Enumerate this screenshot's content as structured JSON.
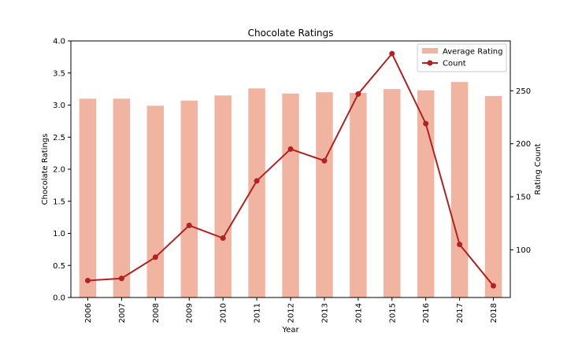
{
  "chart_data": {
    "type": "bar",
    "title": "Chocolate Ratings",
    "xlabel": "Year",
    "ylabel": "Chocolate Ratings",
    "y2label": "Rating Count",
    "categories": [
      "2006",
      "2007",
      "2008",
      "2009",
      "2010",
      "2011",
      "2012",
      "2013",
      "2014",
      "2015",
      "2016",
      "2017",
      "2018"
    ],
    "ylim": [
      0,
      4.0
    ],
    "yticks": [
      0.0,
      0.5,
      1.0,
      1.5,
      2.0,
      2.5,
      3.0,
      3.5,
      4.0
    ],
    "yticks_labels": [
      "0.0",
      "0.5",
      "1.0",
      "1.5",
      "2.0",
      "2.5",
      "3.0",
      "3.5",
      "4.0"
    ],
    "y2lim": [
      55,
      297
    ],
    "y2ticks": [
      100,
      150,
      200,
      250
    ],
    "y2ticks_labels": [
      "100",
      "150",
      "200",
      "250"
    ],
    "series": [
      {
        "name": "Average Rating",
        "type": "bar",
        "axis": "left",
        "color": "#f0b4a0",
        "values": [
          3.1,
          3.1,
          2.99,
          3.07,
          3.15,
          3.26,
          3.18,
          3.2,
          3.19,
          3.25,
          3.23,
          3.36,
          3.14
        ]
      },
      {
        "name": "Count",
        "type": "line",
        "axis": "right",
        "color": "#b22222",
        "values": [
          71,
          73,
          93,
          123,
          111,
          165,
          195,
          184,
          247,
          285,
          219,
          105,
          66
        ]
      }
    ],
    "legend_position": "top-right",
    "grid": false
  }
}
